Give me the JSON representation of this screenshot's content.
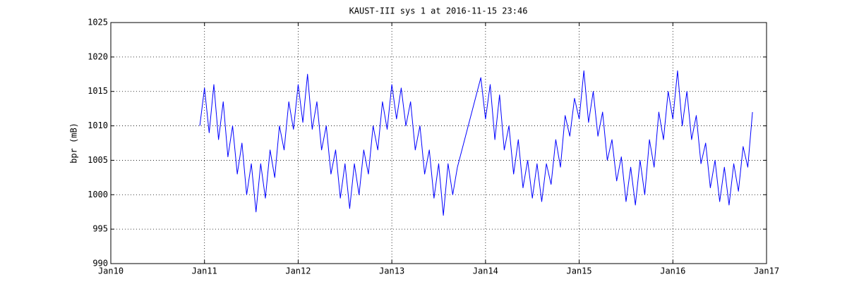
{
  "chart_data": {
    "type": "line",
    "title": "KAUST-III sys 1 at 2016-11-15 23:46",
    "y_label": "bpr (mB)",
    "x": [
      2010.95,
      2011.0,
      2011.05,
      2011.1,
      2011.15,
      2011.2,
      2011.25,
      2011.3,
      2011.35,
      2011.4,
      2011.45,
      2011.5,
      2011.55,
      2011.6,
      2011.65,
      2011.7,
      2011.75,
      2011.8,
      2011.85,
      2011.9,
      2011.95,
      2012.0,
      2012.05,
      2012.1,
      2012.15,
      2012.2,
      2012.25,
      2012.3,
      2012.35,
      2012.4,
      2012.45,
      2012.5,
      2012.55,
      2012.6,
      2012.65,
      2012.7,
      2012.75,
      2012.8,
      2012.85,
      2012.9,
      2012.95,
      2013.0,
      2013.05,
      2013.1,
      2013.15,
      2013.2,
      2013.25,
      2013.3,
      2013.35,
      2013.4,
      2013.45,
      2013.5,
      2013.55,
      2013.6,
      2013.65,
      2013.7,
      2013.95,
      2014.0,
      2014.05,
      2014.1,
      2014.15,
      2014.2,
      2014.25,
      2014.3,
      2014.35,
      2014.4,
      2014.45,
      2014.5,
      2014.55,
      2014.6,
      2014.65,
      2014.7,
      2014.75,
      2014.8,
      2014.85,
      2014.9,
      2014.95,
      2015.0,
      2015.05,
      2015.1,
      2015.15,
      2015.2,
      2015.25,
      2015.3,
      2015.35,
      2015.4,
      2015.45,
      2015.5,
      2015.55,
      2015.6,
      2015.65,
      2015.7,
      2015.75,
      2015.8,
      2015.85,
      2015.9,
      2015.95,
      2016.0,
      2016.05,
      2016.1,
      2016.15,
      2016.2,
      2016.25,
      2016.3,
      2016.35,
      2016.4,
      2016.45,
      2016.5,
      2016.55,
      2016.6,
      2016.65,
      2016.7,
      2016.75,
      2016.8,
      2016.85
    ],
    "series": [
      {
        "color": "#0000ff",
        "values": [
          1010,
          1015.5,
          1009,
          1016,
          1008,
          1013.5,
          1005.5,
          1010,
          1003,
          1007.5,
          1000,
          1004.5,
          997.5,
          1004.5,
          999.5,
          1006.5,
          1002.5,
          1010,
          1006.5,
          1013.5,
          1009.5,
          1016,
          1010.5,
          1017.5,
          1009.5,
          1013.5,
          1006.5,
          1010,
          1003,
          1006.5,
          999.5,
          1004.5,
          998,
          1004.5,
          1000,
          1006.5,
          1003,
          1010,
          1006.5,
          1013.5,
          1009.5,
          1016,
          1011,
          1015.5,
          1010,
          1013.5,
          1006.5,
          1010,
          1003,
          1006.5,
          999.5,
          1004.5,
          997,
          1004.5,
          1000,
          1004,
          1017,
          1011,
          1016,
          1008,
          1014.5,
          1006.5,
          1010,
          1003,
          1008,
          1001,
          1005,
          999.5,
          1004.5,
          999,
          1004.5,
          1001.5,
          1008,
          1004,
          1011.5,
          1008.5,
          1014,
          1011,
          1018,
          1010.5,
          1015,
          1008.5,
          1012,
          1005,
          1008,
          1002,
          1005.5,
          999,
          1004,
          998.5,
          1005,
          1000,
          1008,
          1004,
          1012,
          1008,
          1015,
          1011,
          1018,
          1010,
          1015,
          1008,
          1011.5,
          1004.5,
          1007.5,
          1001,
          1005,
          999,
          1004,
          998.5,
          1004.5,
          1000.5,
          1007,
          1004,
          1012
        ]
      }
    ],
    "xlim": [
      2010,
      2017
    ],
    "xticks": [
      {
        "value": 2010,
        "label": "Jan10"
      },
      {
        "value": 2011,
        "label": "Jan11"
      },
      {
        "value": 2012,
        "label": "Jan12"
      },
      {
        "value": 2013,
        "label": "Jan13"
      },
      {
        "value": 2014,
        "label": "Jan14"
      },
      {
        "value": 2015,
        "label": "Jan15"
      },
      {
        "value": 2016,
        "label": "Jan16"
      },
      {
        "value": 2017,
        "label": "Jan17"
      }
    ],
    "ylim": [
      990,
      1025
    ],
    "yticks": [
      990,
      995,
      1000,
      1005,
      1010,
      1015,
      1020,
      1025
    ],
    "grid": true
  }
}
